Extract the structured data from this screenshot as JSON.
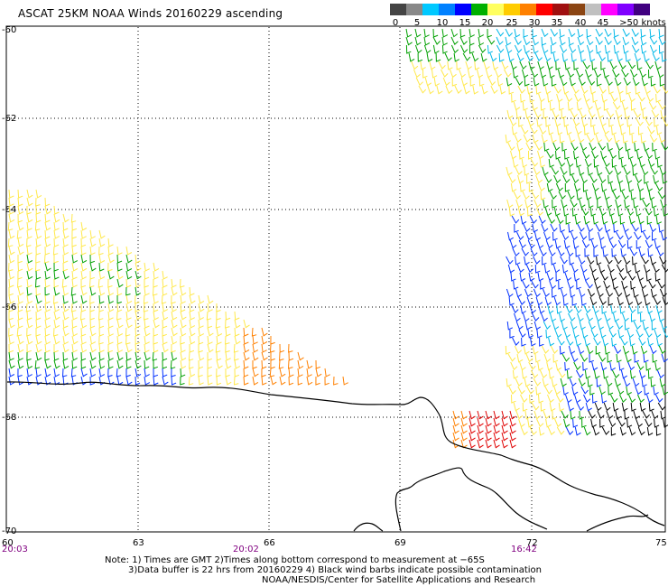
{
  "title": "ASCAT 25KM NOAA Winds 20160229 ascending",
  "legend": {
    "labels": [
      "0",
      "5",
      "10",
      "15",
      "20",
      "25",
      "30",
      "35",
      "40",
      "45",
      ">50 knots"
    ],
    "colors": [
      "#444444",
      "#888888",
      "#00c8ff",
      "#0080ff",
      "#0000ff",
      "#00b000",
      "#ffff60",
      "#ffcc00",
      "#ff8000",
      "#ff0000",
      "#a01010",
      "#8b4513",
      "#c0c0c0",
      "#ff00ff",
      "#8000ff",
      "#400080"
    ]
  },
  "axes": {
    "x_ticks": [
      "60",
      "63",
      "66",
      "69",
      "72",
      "75"
    ],
    "y_ticks": [
      "-60",
      "-62",
      "-64",
      "-66",
      "-68",
      "-70"
    ]
  },
  "times": [
    "20:03",
    "20:02",
    "16:42"
  ],
  "notes": {
    "line1": "Note: 1) Times are GMT 2)Times along bottom correspond to measurement at −65S",
    "line2": "3)Data buffer is 22 hrs from 20160229 4) Black wind barbs indicate possible contamination",
    "line3": "NOAA/NESDIS/Center for Satellite Applications and Research"
  },
  "colors": {
    "yellow": "#ffe84a",
    "green": "#00a000",
    "blue": "#0030ff",
    "cyan": "#00b8e8",
    "orange": "#ff8000",
    "red": "#e00000",
    "black": "#000000",
    "grid": "#000000",
    "time_label": "#800080"
  }
}
